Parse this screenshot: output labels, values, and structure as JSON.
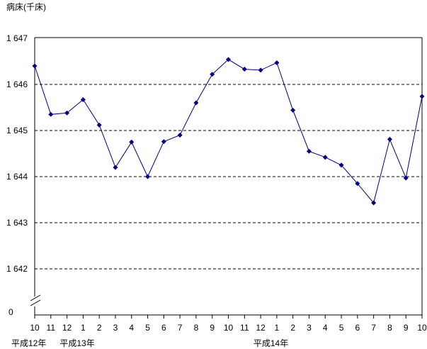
{
  "chart_data": {
    "type": "line",
    "ylabel": "病床(千床)",
    "y_zero_label": "0",
    "ylim": [
      1642,
      1647
    ],
    "yticks": [
      {
        "value": 1647,
        "label": "1 647"
      },
      {
        "value": 1646,
        "label": "1 646"
      },
      {
        "value": 1645,
        "label": "1 645"
      },
      {
        "value": 1644,
        "label": "1 644"
      },
      {
        "value": 1643,
        "label": "1 643"
      },
      {
        "value": 1642,
        "label": "1 642"
      }
    ],
    "grid": "horizontal dashed",
    "axis_break": true,
    "categories": [
      "10",
      "11",
      "12",
      "1",
      "2",
      "3",
      "4",
      "5",
      "6",
      "7",
      "8",
      "9",
      "10",
      "11",
      "12",
      "1",
      "2",
      "3",
      "4",
      "5",
      "6",
      "7",
      "8",
      "9",
      "10"
    ],
    "year_labels": [
      {
        "index": 0,
        "label": "平成12年"
      },
      {
        "index": 3,
        "label": "平成13年"
      },
      {
        "index": 15,
        "label": "平成14年"
      }
    ],
    "series": [
      {
        "color": "#000080",
        "values": [
          1646.4,
          1645.35,
          1645.38,
          1645.67,
          1645.12,
          1644.2,
          1644.75,
          1644.0,
          1644.76,
          1644.9,
          1645.6,
          1646.22,
          1646.54,
          1646.33,
          1646.31,
          1646.47,
          1645.44,
          1644.55,
          1644.42,
          1644.25,
          1643.85,
          1643.43,
          1644.81,
          1643.97,
          1645.74
        ]
      }
    ]
  }
}
